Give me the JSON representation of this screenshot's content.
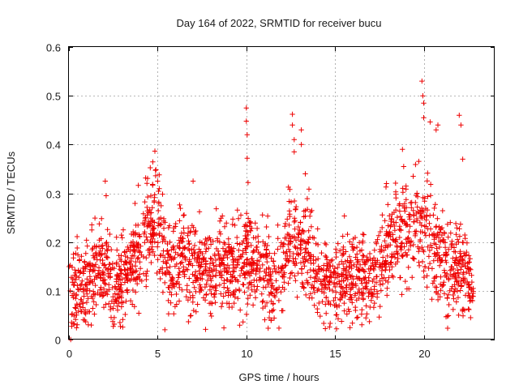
{
  "chart_data": {
    "type": "scatter",
    "title": "Day 164 of 2022, SRMTID for receiver bucu",
    "xlabel": "GPS time / hours",
    "ylabel": "SRMTID / TECUs",
    "xlim": [
      0,
      24
    ],
    "ylim": [
      0,
      0.6
    ],
    "xticks": [
      0,
      5,
      10,
      15,
      20
    ],
    "yticks": [
      0,
      0.1,
      0.2,
      0.3,
      0.4,
      0.5,
      0.6
    ],
    "xtick_labels": [
      "0",
      "5",
      "10",
      "15",
      "20"
    ],
    "ytick_labels": [
      "0",
      "0.1",
      "0.2",
      "0.3",
      "0.4",
      "0.5",
      "0.6"
    ],
    "grid": true,
    "marker": "plus",
    "color": "#ee0000",
    "series": [
      {
        "name": "SRMTID",
        "trend": {
          "x": [
            0,
            0.5,
            1,
            1.5,
            2,
            2.5,
            3,
            3.5,
            4,
            4.5,
            5,
            5.5,
            6,
            6.5,
            7,
            7.5,
            8,
            8.5,
            9,
            9.5,
            10,
            10.5,
            11,
            11.5,
            12,
            12.5,
            13,
            13.5,
            14,
            14.5,
            15,
            15.5,
            16,
            16.5,
            17,
            17.5,
            18,
            18.5,
            19,
            19.5,
            20,
            20.5,
            21,
            21.5,
            22,
            22.5,
            22.8
          ],
          "y": [
            0.12,
            0.1,
            0.12,
            0.14,
            0.15,
            0.11,
            0.12,
            0.15,
            0.19,
            0.24,
            0.25,
            0.15,
            0.14,
            0.17,
            0.16,
            0.14,
            0.13,
            0.15,
            0.15,
            0.16,
            0.17,
            0.15,
            0.15,
            0.12,
            0.13,
            0.21,
            0.2,
            0.18,
            0.12,
            0.13,
            0.12,
            0.13,
            0.13,
            0.12,
            0.12,
            0.15,
            0.2,
            0.23,
            0.22,
            0.22,
            0.23,
            0.21,
            0.15,
            0.14,
            0.15,
            0.12,
            0.1
          ]
        },
        "outliers": [
          {
            "x": 2.05,
            "y": 0.325
          },
          {
            "x": 2.1,
            "y": 0.295
          },
          {
            "x": 10.0,
            "y": 0.475
          },
          {
            "x": 10.0,
            "y": 0.448
          },
          {
            "x": 10.05,
            "y": 0.42
          },
          {
            "x": 10.05,
            "y": 0.372
          },
          {
            "x": 10.1,
            "y": 0.322
          },
          {
            "x": 12.6,
            "y": 0.462
          },
          {
            "x": 12.6,
            "y": 0.44
          },
          {
            "x": 12.7,
            "y": 0.41
          },
          {
            "x": 12.7,
            "y": 0.385
          },
          {
            "x": 13.1,
            "y": 0.43
          },
          {
            "x": 13.1,
            "y": 0.4
          },
          {
            "x": 19.9,
            "y": 0.53
          },
          {
            "x": 19.95,
            "y": 0.5
          },
          {
            "x": 20.0,
            "y": 0.485
          },
          {
            "x": 20.0,
            "y": 0.455
          },
          {
            "x": 20.8,
            "y": 0.44
          },
          {
            "x": 20.7,
            "y": 0.43
          },
          {
            "x": 22.0,
            "y": 0.46
          },
          {
            "x": 22.1,
            "y": 0.44
          },
          {
            "x": 22.2,
            "y": 0.37
          },
          {
            "x": 18.8,
            "y": 0.39
          },
          {
            "x": 11.4,
            "y": 0.04
          },
          {
            "x": 0.1,
            "y": 0.0
          },
          {
            "x": 0.15,
            "y": 0.035
          },
          {
            "x": 7.0,
            "y": 0.325
          },
          {
            "x": 5.0,
            "y": 0.325
          },
          {
            "x": 17.9,
            "y": 0.32
          }
        ]
      }
    ]
  }
}
